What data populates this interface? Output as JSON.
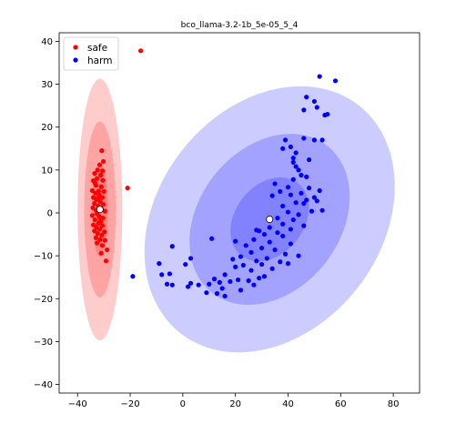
{
  "chart_data": {
    "type": "scatter",
    "title": "bco_llama-3.2-1b_5e-05_5_4",
    "xlabel": "",
    "ylabel": "",
    "xlim": [
      -47,
      90
    ],
    "ylim": [
      -42,
      42
    ],
    "xticks": [
      -40,
      -20,
      0,
      20,
      40,
      60,
      80
    ],
    "yticks": [
      -40,
      -30,
      -20,
      -10,
      0,
      10,
      20,
      30,
      40
    ],
    "grid": false,
    "legend_position": "top-left",
    "series": [
      {
        "name": "safe",
        "color": "#ff0000",
        "mean": [
          -31.5,
          0.8
        ],
        "ellipses": [
          {
            "level": 1,
            "center": [
              -31.5,
              0.8
            ],
            "width": 6,
            "height": 22,
            "angle": 0
          },
          {
            "level": 2,
            "center": [
              -31.5,
              0.8
            ],
            "width": 12,
            "height": 41,
            "angle": 0
          },
          {
            "level": 3,
            "center": [
              -31.5,
              0.8
            ],
            "width": 17,
            "height": 61,
            "angle": 0
          }
        ],
        "points": [
          [
            -16,
            37.8
          ],
          [
            -21,
            5.8
          ],
          [
            -30.8,
            14.5
          ],
          [
            -30.2,
            12.0
          ],
          [
            -31.6,
            11.2
          ],
          [
            -32.4,
            10.0
          ],
          [
            -30.5,
            9.8
          ],
          [
            -33.5,
            9.2
          ],
          [
            -31.2,
            8.8
          ],
          [
            -32.6,
            8.0
          ],
          [
            -34.0,
            7.5
          ],
          [
            -30.4,
            7.6
          ],
          [
            -33.0,
            6.4
          ],
          [
            -31.0,
            6.1
          ],
          [
            -34.4,
            5.2
          ],
          [
            -32.0,
            5.1
          ],
          [
            -30.0,
            5.0
          ],
          [
            -33.2,
            4.6
          ],
          [
            -31.8,
            4.2
          ],
          [
            -34.0,
            3.6
          ],
          [
            -30.6,
            3.6
          ],
          [
            -32.8,
            3.1
          ],
          [
            -31.4,
            2.6
          ],
          [
            -33.6,
            2.2
          ],
          [
            -30.2,
            2.0
          ],
          [
            -32.2,
            1.6
          ],
          [
            -34.2,
            1.2
          ],
          [
            -31.0,
            1.0
          ],
          [
            -33.0,
            0.6
          ],
          [
            -29.6,
            0.4
          ],
          [
            -32.6,
            -0.2
          ],
          [
            -34.4,
            -0.6
          ],
          [
            -31.8,
            -0.8
          ],
          [
            -30.4,
            -1.2
          ],
          [
            -33.4,
            -1.6
          ],
          [
            -31.2,
            -2.0
          ],
          [
            -32.0,
            -2.4
          ],
          [
            -34.0,
            -2.8
          ],
          [
            -30.6,
            -3.0
          ],
          [
            -32.8,
            -3.4
          ],
          [
            -31.6,
            -3.8
          ],
          [
            -33.6,
            -4.2
          ],
          [
            -29.8,
            -4.4
          ],
          [
            -32.4,
            -4.8
          ],
          [
            -30.8,
            -5.2
          ],
          [
            -33.0,
            -5.8
          ],
          [
            -31.4,
            -6.2
          ],
          [
            -29.6,
            -6.4
          ],
          [
            -32.6,
            -7.0
          ],
          [
            -30.6,
            -7.6
          ],
          [
            -28.8,
            -8.6
          ],
          [
            -31.0,
            -9.4
          ],
          [
            -29.2,
            -11.2
          ],
          [
            -33.4,
            7.0
          ],
          [
            -31.2,
            -1.6
          ],
          [
            -32.2,
            3.4
          ]
        ]
      },
      {
        "name": "harm",
        "color": "#0000ff",
        "mean": [
          33,
          -1.5
        ],
        "ellipses": [
          {
            "level": 1,
            "center": [
              33,
              -1.5
            ],
            "width": 35,
            "height": 16,
            "angle": 52
          },
          {
            "level": 2,
            "center": [
              33,
              -1.5
            ],
            "width": 71,
            "height": 33,
            "angle": 52
          },
          {
            "level": 3,
            "center": [
              33,
              -1.5
            ],
            "width": 110,
            "height": 52,
            "angle": 52
          }
        ],
        "points": [
          [
            52,
            31.8
          ],
          [
            58,
            30.8
          ],
          [
            47,
            27.0
          ],
          [
            50,
            26.0
          ],
          [
            51,
            24.6
          ],
          [
            46,
            24.0
          ],
          [
            55,
            23.0
          ],
          [
            54,
            22.8
          ],
          [
            46,
            17.4
          ],
          [
            50,
            17.0
          ],
          [
            53,
            17.0
          ],
          [
            39,
            17.0
          ],
          [
            41,
            15.4
          ],
          [
            38,
            15.0
          ],
          [
            43,
            14.0
          ],
          [
            42,
            12.8
          ],
          [
            48,
            12.4
          ],
          [
            42,
            11.8
          ],
          [
            43,
            10.8
          ],
          [
            44,
            10.0
          ],
          [
            45,
            8.8
          ],
          [
            47,
            8.4
          ],
          [
            42,
            7.8
          ],
          [
            35,
            6.8
          ],
          [
            40,
            6.0
          ],
          [
            48,
            5.8
          ],
          [
            52,
            5.2
          ],
          [
            37,
            5.0
          ],
          [
            45,
            4.6
          ],
          [
            41,
            4.2
          ],
          [
            34,
            4.0
          ],
          [
            50,
            3.6
          ],
          [
            47,
            3.0
          ],
          [
            51,
            2.8
          ],
          [
            43,
            2.4
          ],
          [
            46,
            2.2
          ],
          [
            38,
            1.6
          ],
          [
            53,
            0.6
          ],
          [
            49,
            0.4
          ],
          [
            40,
            0.2
          ],
          [
            44,
            -0.4
          ],
          [
            36,
            -1.2
          ],
          [
            42,
            -1.6
          ],
          [
            38,
            -2.6
          ],
          [
            46,
            -3.0
          ],
          [
            33,
            -3.4
          ],
          [
            41,
            -3.8
          ],
          [
            29,
            -4.2
          ],
          [
            36,
            -4.6
          ],
          [
            31,
            -5.0
          ],
          [
            38,
            -5.4
          ],
          [
            27,
            -6.2
          ],
          [
            20,
            -6.6
          ],
          [
            33,
            -6.8
          ],
          [
            41,
            -7.2
          ],
          [
            24,
            -7.6
          ],
          [
            30,
            -8.2
          ],
          [
            35,
            -8.6
          ],
          [
            26,
            -9.2
          ],
          [
            39,
            -9.6
          ],
          [
            44,
            -10.0
          ],
          [
            22,
            -10.2
          ],
          [
            32,
            -10.6
          ],
          [
            19,
            -10.8
          ],
          [
            28,
            -11.2
          ],
          [
            37,
            -11.4
          ],
          [
            40,
            -11.8
          ],
          [
            30,
            -12.0
          ],
          [
            23,
            -12.2
          ],
          [
            20,
            -12.6
          ],
          [
            34,
            -13.0
          ],
          [
            26,
            -13.4
          ],
          [
            16,
            -14.4
          ],
          [
            31,
            -14.8
          ],
          [
            29,
            -15.2
          ],
          [
            12,
            -15.4
          ],
          [
            21,
            -15.6
          ],
          [
            25,
            -15.8
          ],
          [
            18,
            -16.0
          ],
          [
            14,
            -16.2
          ],
          [
            10,
            -16.6
          ],
          [
            6,
            -16.8
          ],
          [
            3,
            -16.4
          ],
          [
            27,
            -16.8
          ],
          [
            2,
            -17.2
          ],
          [
            15,
            -17.6
          ],
          [
            22,
            -18.0
          ],
          [
            9,
            -18.6
          ],
          [
            13,
            -18.8
          ],
          [
            16,
            -19.4
          ],
          [
            11,
            -6.0
          ],
          [
            3,
            -10.6
          ],
          [
            -4,
            -7.8
          ],
          [
            -6,
            -16.6
          ],
          [
            -4,
            -16.8
          ],
          [
            -5,
            -14.2
          ],
          [
            -8,
            -14.4
          ],
          [
            -9,
            -11.8
          ],
          [
            -19,
            -14.8
          ],
          [
            1,
            -12.0
          ],
          [
            28,
            -4.0
          ]
        ]
      }
    ]
  }
}
